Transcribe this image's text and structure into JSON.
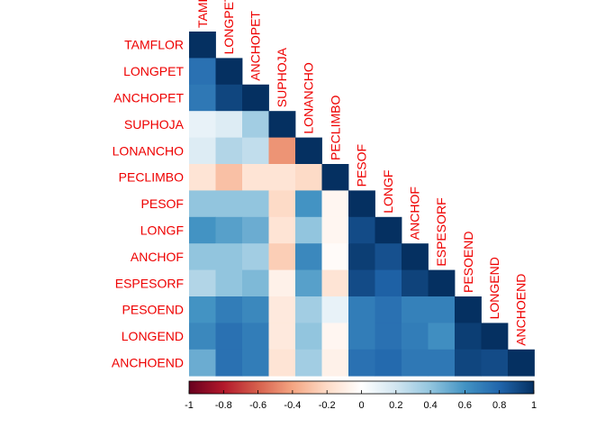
{
  "chart_data": {
    "type": "heatmap",
    "subtype": "correlation-lower-triangle",
    "variables": [
      "TAMFLOR",
      "LONGPET",
      "ANCHOPET",
      "SUPHOJA",
      "LONANCHO",
      "PECLIMBO",
      "PESOF",
      "LONGF",
      "ANCHOF",
      "ESPESORF",
      "PESOEND",
      "LONGEND",
      "ANCHOEND"
    ],
    "matrix": [
      [
        1.0
      ],
      [
        0.75,
        1.0
      ],
      [
        0.72,
        0.92,
        1.0
      ],
      [
        0.1,
        0.15,
        0.35,
        1.0
      ],
      [
        0.15,
        0.3,
        0.25,
        -0.45,
        1.0
      ],
      [
        -0.15,
        -0.3,
        -0.15,
        -0.15,
        -0.2,
        1.0
      ],
      [
        0.4,
        0.4,
        0.4,
        -0.2,
        0.6,
        -0.05,
        1.0
      ],
      [
        0.6,
        0.55,
        0.5,
        -0.15,
        0.4,
        -0.05,
        0.9,
        1.0
      ],
      [
        0.4,
        0.4,
        0.35,
        -0.25,
        0.65,
        -0.02,
        0.95,
        0.88,
        1.0
      ],
      [
        0.3,
        0.4,
        0.45,
        -0.08,
        0.55,
        -0.15,
        0.9,
        0.82,
        0.93,
        1.0
      ],
      [
        0.6,
        0.7,
        0.65,
        -0.12,
        0.35,
        0.1,
        0.7,
        0.75,
        0.68,
        0.68,
        1.0
      ],
      [
        0.65,
        0.75,
        0.7,
        -0.12,
        0.4,
        -0.05,
        0.7,
        0.75,
        0.7,
        0.62,
        0.95,
        1.0
      ],
      [
        0.5,
        0.75,
        0.7,
        -0.15,
        0.35,
        -0.08,
        0.75,
        0.78,
        0.72,
        0.72,
        0.92,
        0.9,
        1.0
      ]
    ],
    "colorbar": {
      "range": [
        -1,
        1
      ],
      "ticks": [
        "-1",
        "-0.8",
        "-0.6",
        "-0.4",
        "-0.2",
        "0",
        "0.2",
        "0.4",
        "0.6",
        "0.8",
        "1"
      ]
    },
    "colors": {
      "label_color": "#ee0000",
      "scale": [
        "#67001f",
        "#b2182b",
        "#d6604d",
        "#f4a582",
        "#fddbc7",
        "#ffffff",
        "#d1e5f0",
        "#92c5de",
        "#4393c3",
        "#2166ac",
        "#053061"
      ]
    }
  }
}
